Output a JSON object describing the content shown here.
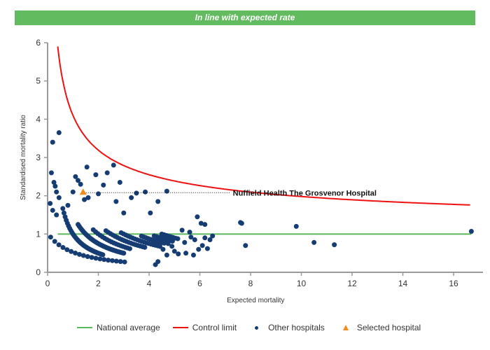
{
  "banner": {
    "text": "In line with expected rate",
    "color": "#62bb5e"
  },
  "chart_data": {
    "type": "scatter",
    "title": "In line with expected rate",
    "xlabel": "Expected mortality",
    "ylabel": "Standardised mortality ratio",
    "xlim": [
      0,
      17
    ],
    "ylim": [
      0,
      6
    ],
    "xticks": [
      0,
      2,
      4,
      6,
      8,
      10,
      12,
      14,
      16
    ],
    "yticks": [
      0,
      1,
      2,
      3,
      4,
      5,
      6
    ],
    "grid": false,
    "legend_position": "bottom",
    "national_average": {
      "name": "National average",
      "y": 1,
      "x_range": [
        0.4,
        16.7
      ],
      "color": "#5cb85c"
    },
    "control_limit": {
      "name": "Control limit",
      "color": "#ee1111",
      "points": [
        [
          0.4,
          5.95
        ],
        [
          0.6,
          5.0
        ],
        [
          0.8,
          4.45
        ],
        [
          1.0,
          4.1
        ],
        [
          1.5,
          3.55
        ],
        [
          2.0,
          3.2
        ],
        [
          2.5,
          2.95
        ],
        [
          3.0,
          2.8
        ],
        [
          4.0,
          2.55
        ],
        [
          5.0,
          2.38
        ],
        [
          6.0,
          2.27
        ],
        [
          7.0,
          2.17
        ],
        [
          8.0,
          2.1
        ],
        [
          10.0,
          1.98
        ],
        [
          12.0,
          1.9
        ],
        [
          14.0,
          1.83
        ],
        [
          16.7,
          1.76
        ]
      ]
    },
    "selected_hospital": {
      "name": "Selected hospital",
      "label": "Nuffield Health The Grosvenor Hospital",
      "x": 1.4,
      "y": 2.08,
      "color": "#f28a1c"
    },
    "other_hospitals": {
      "name": "Other hospitals",
      "color": "#163d73",
      "points": [
        [
          0.2,
          3.4
        ],
        [
          0.45,
          3.65
        ],
        [
          0.15,
          2.6
        ],
        [
          0.25,
          2.35
        ],
        [
          0.3,
          2.25
        ],
        [
          0.35,
          2.1
        ],
        [
          0.45,
          1.95
        ],
        [
          0.1,
          1.8
        ],
        [
          0.2,
          1.62
        ],
        [
          0.35,
          1.5
        ],
        [
          0.8,
          1.75
        ],
        [
          1.0,
          2.1
        ],
        [
          1.1,
          2.5
        ],
        [
          1.2,
          2.4
        ],
        [
          1.3,
          2.3
        ],
        [
          1.55,
          2.75
        ],
        [
          1.6,
          1.95
        ],
        [
          1.45,
          1.9
        ],
        [
          1.9,
          2.55
        ],
        [
          2.2,
          2.28
        ],
        [
          2.35,
          2.6
        ],
        [
          2.6,
          2.8
        ],
        [
          2.85,
          2.35
        ],
        [
          2.0,
          2.05
        ],
        [
          2.7,
          1.85
        ],
        [
          3.0,
          1.55
        ],
        [
          3.3,
          1.95
        ],
        [
          3.5,
          2.07
        ],
        [
          3.85,
          2.1
        ],
        [
          4.05,
          1.55
        ],
        [
          4.35,
          1.85
        ],
        [
          4.7,
          2.12
        ],
        [
          5.3,
          1.1
        ],
        [
          5.6,
          1.05
        ],
        [
          5.65,
          0.92
        ],
        [
          5.9,
          1.45
        ],
        [
          6.05,
          1.28
        ],
        [
          6.2,
          1.25
        ],
        [
          5.4,
          0.78
        ],
        [
          5.8,
          0.85
        ],
        [
          6.4,
          0.85
        ],
        [
          6.5,
          0.95
        ],
        [
          6.3,
          0.62
        ],
        [
          6.1,
          0.7
        ],
        [
          5.45,
          0.5
        ],
        [
          5.95,
          0.6
        ],
        [
          5.75,
          0.45
        ],
        [
          6.2,
          0.9
        ],
        [
          4.6,
          0.95
        ],
        [
          4.75,
          0.75
        ],
        [
          4.9,
          0.68
        ],
        [
          5.0,
          0.55
        ],
        [
          5.15,
          0.48
        ],
        [
          4.7,
          0.45
        ],
        [
          4.35,
          0.28
        ],
        [
          4.25,
          0.2
        ],
        [
          4.55,
          0.6
        ],
        [
          7.6,
          1.3
        ],
        [
          7.65,
          1.28
        ],
        [
          7.8,
          0.7
        ],
        [
          9.8,
          1.2
        ],
        [
          10.5,
          0.78
        ],
        [
          11.3,
          0.72
        ],
        [
          16.7,
          1.07
        ]
      ],
      "arcs_note": "Dense bands follow SMR = n / expected for n = 1..9 deaths",
      "arc_bands": [
        1,
        2,
        3,
        4,
        5,
        6,
        7,
        8,
        9
      ]
    },
    "legend": [
      {
        "label": "National average",
        "kind": "line",
        "color": "#5cb85c"
      },
      {
        "label": "Control limit",
        "kind": "line",
        "color": "#ee1111"
      },
      {
        "label": "Other hospitals",
        "kind": "dot",
        "color": "#163d73"
      },
      {
        "label": "Selected hospital",
        "kind": "triangle",
        "color": "#f28a1c"
      }
    ]
  }
}
